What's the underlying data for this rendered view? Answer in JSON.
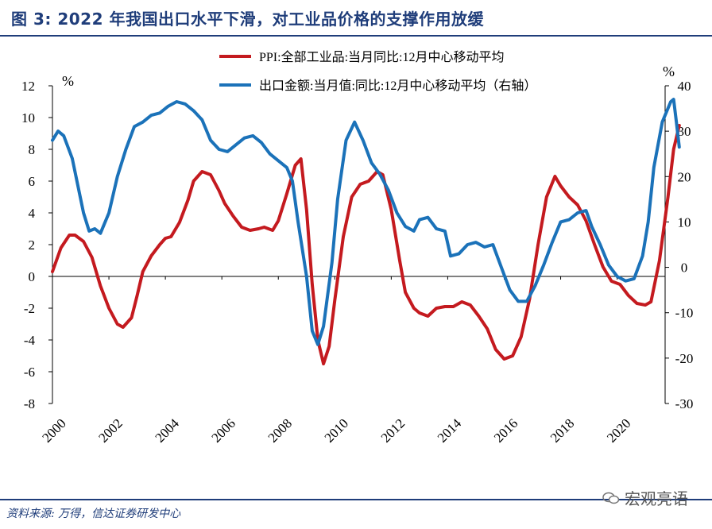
{
  "header": {
    "title": "图 3: 2022 年我国出口水平下滑，对工业品价格的支撑作用放缓"
  },
  "footer": {
    "source": "资料来源: 万得，信达证券研发中心",
    "watermark": "宏观亮语"
  },
  "colors": {
    "ppi": "#c41a1f",
    "export": "#1b72b9",
    "brand": "#1f3d7a"
  },
  "chart_data": {
    "type": "line",
    "title": "",
    "xlabel": "",
    "left_unit": "%",
    "right_unit": "%",
    "x_ticks": [
      "2000",
      "2002",
      "2004",
      "2006",
      "2008",
      "2010",
      "2012",
      "2014",
      "2016",
      "2018",
      "2020"
    ],
    "xlim": [
      2000.0,
      2022.0
    ],
    "ylim_left": [
      -8,
      12
    ],
    "ylim_right": [
      -30,
      40
    ],
    "yticks_left": [
      "-8",
      "-6",
      "-4",
      "-2",
      "0",
      "2",
      "4",
      "6",
      "8",
      "10",
      "12"
    ],
    "yticks_right": [
      "-30",
      "-20",
      "-10",
      "0",
      "10",
      "20",
      "30",
      "40"
    ],
    "series": [
      {
        "name": "PPI:全部工业品:当月同比:12月中心移动平均",
        "axis": "left",
        "points": [
          [
            2000.0,
            0.3
          ],
          [
            2000.3,
            1.8
          ],
          [
            2000.6,
            2.6
          ],
          [
            2000.8,
            2.6
          ],
          [
            2001.1,
            2.2
          ],
          [
            2001.4,
            1.2
          ],
          [
            2001.7,
            -0.6
          ],
          [
            2002.0,
            -2.0
          ],
          [
            2002.3,
            -3.0
          ],
          [
            2002.5,
            -3.2
          ],
          [
            2002.8,
            -2.6
          ],
          [
            2003.0,
            -1.2
          ],
          [
            2003.2,
            0.3
          ],
          [
            2003.5,
            1.3
          ],
          [
            2003.8,
            2.0
          ],
          [
            2004.0,
            2.4
          ],
          [
            2004.2,
            2.5
          ],
          [
            2004.5,
            3.4
          ],
          [
            2004.8,
            4.8
          ],
          [
            2005.0,
            6.0
          ],
          [
            2005.3,
            6.6
          ],
          [
            2005.6,
            6.4
          ],
          [
            2005.9,
            5.4
          ],
          [
            2006.1,
            4.6
          ],
          [
            2006.4,
            3.8
          ],
          [
            2006.7,
            3.1
          ],
          [
            2007.0,
            2.9
          ],
          [
            2007.3,
            3.0
          ],
          [
            2007.5,
            3.1
          ],
          [
            2007.8,
            2.9
          ],
          [
            2008.0,
            3.5
          ],
          [
            2008.3,
            5.2
          ],
          [
            2008.6,
            7.0
          ],
          [
            2008.8,
            7.4
          ],
          [
            2009.0,
            4.2
          ],
          [
            2009.2,
            -0.5
          ],
          [
            2009.4,
            -4.0
          ],
          [
            2009.6,
            -5.5
          ],
          [
            2009.8,
            -4.4
          ],
          [
            2010.0,
            -1.5
          ],
          [
            2010.3,
            2.5
          ],
          [
            2010.6,
            5.0
          ],
          [
            2010.9,
            5.8
          ],
          [
            2011.2,
            6.0
          ],
          [
            2011.5,
            6.6
          ],
          [
            2011.7,
            6.4
          ],
          [
            2012.0,
            4.2
          ],
          [
            2012.3,
            1.0
          ],
          [
            2012.5,
            -1.0
          ],
          [
            2012.8,
            -2.0
          ],
          [
            2013.0,
            -2.3
          ],
          [
            2013.3,
            -2.5
          ],
          [
            2013.6,
            -2.0
          ],
          [
            2013.9,
            -1.9
          ],
          [
            2014.2,
            -1.9
          ],
          [
            2014.5,
            -1.6
          ],
          [
            2014.8,
            -1.8
          ],
          [
            2015.1,
            -2.5
          ],
          [
            2015.4,
            -3.3
          ],
          [
            2015.7,
            -4.6
          ],
          [
            2016.0,
            -5.2
          ],
          [
            2016.3,
            -5.0
          ],
          [
            2016.6,
            -3.8
          ],
          [
            2016.9,
            -1.4
          ],
          [
            2017.2,
            2.0
          ],
          [
            2017.5,
            5.0
          ],
          [
            2017.8,
            6.3
          ],
          [
            2018.0,
            5.7
          ],
          [
            2018.3,
            5.0
          ],
          [
            2018.6,
            4.5
          ],
          [
            2018.9,
            3.5
          ],
          [
            2019.2,
            2.0
          ],
          [
            2019.5,
            0.6
          ],
          [
            2019.8,
            -0.3
          ],
          [
            2020.1,
            -0.5
          ],
          [
            2020.4,
            -1.2
          ],
          [
            2020.7,
            -1.7
          ],
          [
            2021.0,
            -1.8
          ],
          [
            2021.2,
            -1.6
          ],
          [
            2021.5,
            1.0
          ],
          [
            2021.8,
            5.0
          ],
          [
            2022.0,
            8.0
          ],
          [
            2022.2,
            9.5
          ]
        ]
      },
      {
        "name": "出口金额:当月值:同比:12月中心移动平均（右轴）",
        "axis": "right",
        "points": [
          [
            2000.0,
            28.0
          ],
          [
            2000.2,
            30.0
          ],
          [
            2000.4,
            29.0
          ],
          [
            2000.7,
            24.0
          ],
          [
            2000.9,
            18.0
          ],
          [
            2001.1,
            12.0
          ],
          [
            2001.3,
            8.0
          ],
          [
            2001.5,
            8.5
          ],
          [
            2001.7,
            7.5
          ],
          [
            2002.0,
            12.0
          ],
          [
            2002.3,
            20.0
          ],
          [
            2002.6,
            26.0
          ],
          [
            2002.9,
            31.0
          ],
          [
            2003.2,
            32.0
          ],
          [
            2003.5,
            33.5
          ],
          [
            2003.8,
            34.0
          ],
          [
            2004.1,
            35.5
          ],
          [
            2004.4,
            36.5
          ],
          [
            2004.7,
            36.0
          ],
          [
            2005.0,
            34.5
          ],
          [
            2005.3,
            32.5
          ],
          [
            2005.6,
            28.0
          ],
          [
            2005.9,
            26.0
          ],
          [
            2006.2,
            25.5
          ],
          [
            2006.5,
            27.0
          ],
          [
            2006.8,
            28.5
          ],
          [
            2007.1,
            29.0
          ],
          [
            2007.4,
            27.5
          ],
          [
            2007.7,
            25.0
          ],
          [
            2008.0,
            23.5
          ],
          [
            2008.3,
            22.0
          ],
          [
            2008.5,
            19.0
          ],
          [
            2008.7,
            10.0
          ],
          [
            2009.0,
            -2.0
          ],
          [
            2009.2,
            -14.0
          ],
          [
            2009.4,
            -17.0
          ],
          [
            2009.6,
            -13.0
          ],
          [
            2009.9,
            1.0
          ],
          [
            2010.1,
            15.0
          ],
          [
            2010.4,
            28.0
          ],
          [
            2010.7,
            32.0
          ],
          [
            2011.0,
            28.0
          ],
          [
            2011.3,
            23.0
          ],
          [
            2011.6,
            20.5
          ],
          [
            2011.9,
            17.0
          ],
          [
            2012.2,
            12.0
          ],
          [
            2012.5,
            9.0
          ],
          [
            2012.8,
            8.0
          ],
          [
            2013.0,
            10.5
          ],
          [
            2013.3,
            11.0
          ],
          [
            2013.6,
            8.5
          ],
          [
            2013.9,
            8.0
          ],
          [
            2014.1,
            2.5
          ],
          [
            2014.4,
            3.0
          ],
          [
            2014.7,
            5.0
          ],
          [
            2015.0,
            5.5
          ],
          [
            2015.3,
            4.5
          ],
          [
            2015.6,
            5.0
          ],
          [
            2015.9,
            0.0
          ],
          [
            2016.2,
            -5.0
          ],
          [
            2016.5,
            -7.5
          ],
          [
            2016.8,
            -7.5
          ],
          [
            2017.1,
            -4.0
          ],
          [
            2017.4,
            0.5
          ],
          [
            2017.7,
            5.5
          ],
          [
            2018.0,
            10.0
          ],
          [
            2018.3,
            10.5
          ],
          [
            2018.6,
            12.0
          ],
          [
            2018.9,
            12.5
          ],
          [
            2019.1,
            9.0
          ],
          [
            2019.4,
            5.0
          ],
          [
            2019.7,
            0.5
          ],
          [
            2020.0,
            -2.0
          ],
          [
            2020.3,
            -3.0
          ],
          [
            2020.6,
            -2.5
          ],
          [
            2020.9,
            2.5
          ],
          [
            2021.1,
            10.0
          ],
          [
            2021.3,
            22.0
          ],
          [
            2021.6,
            32.0
          ],
          [
            2021.9,
            36.5
          ],
          [
            2022.0,
            37.0
          ],
          [
            2022.1,
            32.0
          ],
          [
            2022.2,
            26.5
          ]
        ]
      }
    ]
  }
}
